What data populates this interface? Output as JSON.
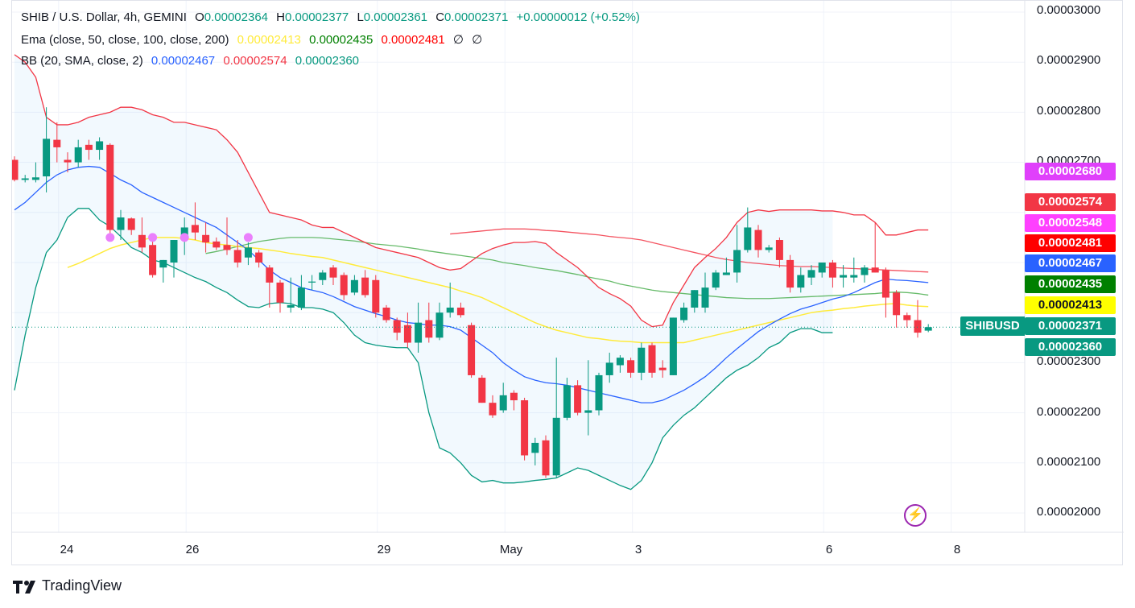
{
  "legend": {
    "title": "SHIB / U.S. Dollar, 4h, GEMINI",
    "o_label": "O",
    "o_value": "0.00002364",
    "h_label": "H",
    "h_value": "0.00002377",
    "l_label": "L",
    "l_value": "0.00002361",
    "c_label": "C",
    "c_value": "0.00002371",
    "change": "+0.00000012 (+0.52%)",
    "ema_label": "Ema (close, 50, close, 100, close, 200)",
    "ema_50": "0.00002413",
    "ema_100": "0.00002435",
    "ema_200": "0.00002481",
    "ema_extra_1": "∅",
    "ema_extra_2": "∅",
    "bb_label": "BB (20, SMA, close, 2)",
    "bb_basis": "0.00002467",
    "bb_upper": "0.00002574",
    "bb_lower": "0.00002360"
  },
  "price_tags": {
    "t2680": "0.00002680",
    "t2574": "0.00002574",
    "t2548": "0.00002548",
    "t2481": "0.00002481",
    "t2467": "0.00002467",
    "t2435": "0.00002435",
    "t2413": "0.00002413",
    "t2371": "0.00002371",
    "t2360": "0.00002360",
    "symbol": "SHIBUSD"
  },
  "brand": "TradingView",
  "colors": {
    "up": "#089981",
    "down": "#f23645",
    "bb_basis": "#2962ff",
    "bb_upper": "#f23645",
    "bb_lower": "#089981",
    "ema50": "#ffeb3b",
    "ema100": "#4caf50",
    "ema200": "#f23645",
    "tag_magenta": "#e040fb",
    "tag_pink": "#ff55dd",
    "tag_ema200": "#ff0000",
    "tag_ema100": "#008000",
    "tag_ema50": "#ffff00",
    "marker": "#ea80fc"
  },
  "chart_data": {
    "type": "candlestick",
    "title": "SHIB / U.S. Dollar, 4h, GEMINI",
    "ylim": [
      1.97e-05,
      3e-05
    ],
    "y_ticks": [
      "0.00003000",
      "0.00002900",
      "0.00002800",
      "0.00002700",
      "0.00002300",
      "0.00002200",
      "0.00002100",
      "0.00002000"
    ],
    "x_ticks": [
      {
        "label": "24",
        "index": 4
      },
      {
        "label": "26",
        "index": 16
      },
      {
        "label": "29",
        "index": 34
      },
      {
        "label": "May",
        "index": 46
      },
      {
        "label": "3",
        "index": 58
      },
      {
        "label": "6",
        "index": 76
      },
      {
        "label": "8",
        "index": 88
      }
    ],
    "candles": [
      [
        2.705e-05,
        2.712e-05,
        2.662e-05,
        2.665e-05
      ],
      [
        2.665e-05,
        2.675e-05,
        2.66e-05,
        2.668e-05
      ],
      [
        2.665e-05,
        2.7e-05,
        2.66e-05,
        2.67e-05
      ],
      [
        2.672e-05,
        2.81e-05,
        2.64e-05,
        2.747e-05
      ],
      [
        2.745e-05,
        2.78e-05,
        2.7e-05,
        2.73e-05
      ],
      [
        2.705e-05,
        2.72e-05,
        2.68e-05,
        2.7e-05
      ],
      [
        2.7e-05,
        2.745e-05,
        2.69e-05,
        2.73e-05
      ],
      [
        2.735e-05,
        2.745e-05,
        2.705e-05,
        2.725e-05
      ],
      [
        2.725e-05,
        2.75e-05,
        2.705e-05,
        2.742e-05
      ],
      [
        2.735e-05,
        2.738e-05,
        2.555e-05,
        2.565e-05
      ],
      [
        2.565e-05,
        2.605e-05,
        2.545e-05,
        2.59e-05
      ],
      [
        2.588e-05,
        2.59e-05,
        2.555e-05,
        2.565e-05
      ],
      [
        2.555e-05,
        2.59e-05,
        2.52e-05,
        2.53e-05
      ],
      [
        2.535e-05,
        2.545e-05,
        2.47e-05,
        2.475e-05
      ],
      [
        2.49e-05,
        2.505e-05,
        2.46e-05,
        2.505e-05
      ],
      [
        2.5e-05,
        2.545e-05,
        2.47e-05,
        2.545e-05
      ],
      [
        2.545e-05,
        2.59e-05,
        2.515e-05,
        2.57e-05
      ],
      [
        2.575e-05,
        2.62e-05,
        2.545e-05,
        2.56e-05
      ],
      [
        2.555e-05,
        2.58e-05,
        2.52e-05,
        2.54e-05
      ],
      [
        2.542e-05,
        2.55e-05,
        2.525e-05,
        2.53e-05
      ],
      [
        2.535e-05,
        2.59e-05,
        2.515e-05,
        2.525e-05
      ],
      [
        2.525e-05,
        2.545e-05,
        2.49e-05,
        2.5e-05
      ],
      [
        2.51e-05,
        2.54e-05,
        2.495e-05,
        2.53e-05
      ],
      [
        2.52e-05,
        2.525e-05,
        2.49e-05,
        2.5e-05
      ],
      [
        2.49e-05,
        2.495e-05,
        2.41e-05,
        2.46e-05
      ],
      [
        2.46e-05,
        2.465e-05,
        2.4e-05,
        2.42e-05
      ],
      [
        2.41e-05,
        2.47e-05,
        2.4e-05,
        2.415e-05
      ],
      [
        2.41e-05,
        2.475e-05,
        2.405e-05,
        2.45e-05
      ],
      [
        2.46e-05,
        2.475e-05,
        2.445e-05,
        2.462e-05
      ],
      [
        2.465e-05,
        2.485e-05,
        2.455e-05,
        2.48e-05
      ],
      [
        2.49e-05,
        2.495e-05,
        2.455e-05,
        2.47e-05
      ],
      [
        2.475e-05,
        2.48e-05,
        2.425e-05,
        2.435e-05
      ],
      [
        2.44e-05,
        2.475e-05,
        2.435e-05,
        2.465e-05
      ],
      [
        2.47e-05,
        2.485e-05,
        2.43e-05,
        2.435e-05
      ],
      [
        2.465e-05,
        2.475e-05,
        2.39e-05,
        2.4e-05
      ],
      [
        2.41e-05,
        2.415e-05,
        2.38e-05,
        2.385e-05
      ],
      [
        2.385e-05,
        2.39e-05,
        2.345e-05,
        2.36e-05
      ],
      [
        2.375e-05,
        2.4e-05,
        2.33e-05,
        2.34e-05
      ],
      [
        2.34e-05,
        2.42e-05,
        2.32e-05,
        2.38e-05
      ],
      [
        2.385e-05,
        2.42e-05,
        2.34e-05,
        2.35e-05
      ],
      [
        2.35e-05,
        2.42e-05,
        2.345e-05,
        2.4e-05
      ],
      [
        2.4e-05,
        2.46e-05,
        2.39e-05,
        2.41e-05
      ],
      [
        2.41e-05,
        2.42e-05,
        2.39e-05,
        2.395e-05
      ],
      [
        2.375e-05,
        2.38e-05,
        2.27e-05,
        2.275e-05
      ],
      [
        2.27e-05,
        2.275e-05,
        2.22e-05,
        2.22e-05
      ],
      [
        2.22e-05,
        2.235e-05,
        2.19e-05,
        2.195e-05
      ],
      [
        2.205e-05,
        2.26e-05,
        2.2e-05,
        2.235e-05
      ],
      [
        2.24e-05,
        2.245e-05,
        2.205e-05,
        2.225e-05
      ],
      [
        2.225e-05,
        2.23e-05,
        2.105e-05,
        2.115e-05
      ],
      [
        2.12e-05,
        2.15e-05,
        2.095e-05,
        2.14e-05
      ],
      [
        2.145e-05,
        2.155e-05,
        2.07e-05,
        2.075e-05
      ],
      [
        2.075e-05,
        2.31e-05,
        2.07e-05,
        2.19e-05
      ],
      [
        2.19e-05,
        2.27e-05,
        2.185e-05,
        2.255e-05
      ],
      [
        2.255e-05,
        2.265e-05,
        2.195e-05,
        2.2e-05
      ],
      [
        2.2e-05,
        2.305e-05,
        2.155e-05,
        2.205e-05
      ],
      [
        2.205e-05,
        2.28e-05,
        2.195e-05,
        2.275e-05
      ],
      [
        2.275e-05,
        2.32e-05,
        2.26e-05,
        2.3e-05
      ],
      [
        2.295e-05,
        2.315e-05,
        2.28e-05,
        2.31e-05
      ],
      [
        2.305e-05,
        2.31e-05,
        2.27e-05,
        2.28e-05
      ],
      [
        2.28e-05,
        2.34e-05,
        2.265e-05,
        2.33e-05
      ],
      [
        2.335e-05,
        2.34e-05,
        2.27e-05,
        2.28e-05
      ],
      [
        2.29e-05,
        2.305e-05,
        2.27e-05,
        2.285e-05
      ],
      [
        2.275e-05,
        2.39e-05,
        2.275e-05,
        2.39e-05
      ],
      [
        2.385e-05,
        2.42e-05,
        2.38e-05,
        2.41e-05
      ],
      [
        2.41e-05,
        2.445e-05,
        2.4e-05,
        2.445e-05
      ],
      [
        2.41e-05,
        2.48e-05,
        2.4e-05,
        2.45e-05
      ],
      [
        2.45e-05,
        2.485e-05,
        2.445e-05,
        2.48e-05
      ],
      [
        2.475e-05,
        2.51e-05,
        2.475e-05,
        2.48e-05
      ],
      [
        2.48e-05,
        2.575e-05,
        2.46e-05,
        2.525e-05
      ],
      [
        2.525e-05,
        2.61e-05,
        2.52e-05,
        2.57e-05
      ],
      [
        2.565e-05,
        2.575e-05,
        2.51e-05,
        2.525e-05
      ],
      [
        2.525e-05,
        2.535e-05,
        2.52e-05,
        2.53e-05
      ],
      [
        2.545e-05,
        2.55e-05,
        2.49e-05,
        2.505e-05
      ],
      [
        2.505e-05,
        2.515e-05,
        2.44e-05,
        2.45e-05
      ],
      [
        2.45e-05,
        2.49e-05,
        2.44e-05,
        2.475e-05
      ],
      [
        2.47e-05,
        2.495e-05,
        2.455e-05,
        2.485e-05
      ],
      [
        2.48e-05,
        2.5e-05,
        2.47e-05,
        2.5e-05
      ],
      [
        2.5e-05,
        2.505e-05,
        2.45e-05,
        2.47e-05
      ],
      [
        2.47e-05,
        2.495e-05,
        2.45e-05,
        2.475e-05
      ],
      [
        2.47e-05,
        2.51e-05,
        2.46e-05,
        2.475e-05
      ],
      [
        2.475e-05,
        2.495e-05,
        2.46e-05,
        2.49e-05
      ],
      [
        2.49e-05,
        2.58e-05,
        2.48e-05,
        2.48e-05
      ],
      [
        2.485e-05,
        2.49e-05,
        2.39e-05,
        2.43e-05
      ],
      [
        2.44e-05,
        2.445e-05,
        2.37e-05,
        2.395e-05
      ],
      [
        2.395e-05,
        2.4e-05,
        2.37e-05,
        2.385e-05
      ],
      [
        2.385e-05,
        2.425e-05,
        2.35e-05,
        2.36e-05
      ],
      [
        2.364e-05,
        2.377e-05,
        2.361e-05,
        2.371e-05
      ]
    ],
    "bb_upper": [
      2.915e-05,
      2.9e-05,
      2.87e-05,
      2.79e-05,
      2.775e-05,
      2.775e-05,
      2.78e-05,
      2.79e-05,
      2.795e-05,
      2.8e-05,
      2.81e-05,
      2.81e-05,
      2.805e-05,
      2.795e-05,
      2.79e-05,
      2.78e-05,
      2.78e-05,
      2.775e-05,
      2.77e-05,
      2.765e-05,
      2.745e-05,
      2.72e-05,
      2.68e-05,
      2.64e-05,
      2.6e-05,
      2.595e-05,
      2.59e-05,
      2.585e-05,
      2.575e-05,
      2.57e-05,
      2.57e-05,
      2.56e-05,
      2.55e-05,
      2.54e-05,
      2.53e-05,
      2.525e-05,
      2.52e-05,
      2.515e-05,
      2.51e-05,
      2.5e-05,
      2.49e-05,
      2.485e-05,
      2.488e-05,
      2.503e-05,
      2.518e-05,
      2.528e-05,
      2.535e-05,
      2.54e-05,
      2.54e-05,
      2.542e-05,
      2.538e-05,
      2.52e-05,
      2.505e-05,
      2.49e-05,
      2.47e-05,
      2.45e-05,
      2.438e-05,
      2.428e-05,
      2.413e-05,
      2.385e-05,
      2.372e-05,
      2.375e-05,
      2.42e-05,
      2.455e-05,
      2.49e-05,
      2.51e-05,
      2.528e-05,
      2.55e-05,
      2.58e-05,
      2.6e-05,
      2.605e-05,
      2.602e-05,
      2.605e-05,
      2.605e-05,
      2.605e-05,
      2.605e-05,
      2.603e-05,
      2.603e-05,
      2.6e-05,
      2.595e-05,
      2.595e-05,
      2.58e-05,
      2.555e-05,
      2.555e-05,
      2.56e-05,
      2.565e-05,
      2.565e-05
    ],
    "bb_basis": [
      2.605e-05,
      2.62e-05,
      2.64e-05,
      2.66e-05,
      2.675e-05,
      2.685e-05,
      2.69e-05,
      2.692e-05,
      2.69e-05,
      2.678e-05,
      2.665e-05,
      2.655e-05,
      2.64e-05,
      2.63e-05,
      2.62e-05,
      2.61e-05,
      2.6e-05,
      2.59e-05,
      2.58e-05,
      2.57e-05,
      2.555e-05,
      2.54e-05,
      2.525e-05,
      2.505e-05,
      2.485e-05,
      2.47e-05,
      2.46e-05,
      2.45e-05,
      2.445e-05,
      2.44e-05,
      2.432e-05,
      2.422e-05,
      2.412e-05,
      2.405e-05,
      2.398e-05,
      2.392e-05,
      2.385e-05,
      2.38e-05,
      2.378e-05,
      2.375e-05,
      2.375e-05,
      2.372e-05,
      2.365e-05,
      2.35e-05,
      2.335e-05,
      2.32e-05,
      2.3e-05,
      2.285e-05,
      2.272e-05,
      2.265e-05,
      2.26e-05,
      2.258e-05,
      2.255e-05,
      2.25e-05,
      2.245e-05,
      2.24e-05,
      2.235e-05,
      2.23e-05,
      2.225e-05,
      2.22e-05,
      2.22e-05,
      2.225e-05,
      2.235e-05,
      2.245e-05,
      2.258e-05,
      2.272e-05,
      2.29e-05,
      2.31e-05,
      2.328e-05,
      2.345e-05,
      2.362e-05,
      2.375e-05,
      2.387e-05,
      2.398e-05,
      2.407e-05,
      2.413e-05,
      2.42e-05,
      2.427e-05,
      2.432e-05,
      2.44e-05,
      2.45e-05,
      2.46e-05,
      2.467e-05,
      2.465e-05,
      2.464e-05,
      2.462e-05,
      2.46e-05
    ],
    "bb_lower": [
      2.245e-05,
      2.355e-05,
      2.45e-05,
      2.52e-05,
      2.545e-05,
      2.59e-05,
      2.608e-05,
      2.608e-05,
      2.585e-05,
      2.572e-05,
      2.552e-05,
      2.53e-05,
      2.52e-05,
      2.505e-05,
      2.5e-05,
      2.49e-05,
      2.48e-05,
      2.47e-05,
      2.462e-05,
      2.45e-05,
      2.44e-05,
      2.425e-05,
      2.412e-05,
      2.41e-05,
      2.418e-05,
      2.42e-05,
      2.418e-05,
      2.41e-05,
      2.41e-05,
      2.407e-05,
      2.4e-05,
      2.38e-05,
      2.355e-05,
      2.34e-05,
      2.335e-05,
      2.332e-05,
      2.33e-05,
      2.33e-05,
      2.3e-05,
      2.2e-05,
      2.13e-05,
      2.12e-05,
      2.1e-05,
      2.075e-05,
      2.062e-05,
      2.065e-05,
      2.06e-05,
      2.06e-05,
      2.062e-05,
      2.065e-05,
      2.067e-05,
      2.07e-05,
      2.08e-05,
      2.09e-05,
      2.085e-05,
      2.075e-05,
      2.065e-05,
      2.055e-05,
      2.047e-05,
      2.065e-05,
      2.1e-05,
      2.15e-05,
      2.175e-05,
      2.195e-05,
      2.21e-05,
      2.23e-05,
      2.25e-05,
      2.27e-05,
      2.285e-05,
      2.295e-05,
      2.31e-05,
      2.33e-05,
      2.34e-05,
      2.36e-05,
      2.368e-05,
      2.368e-05,
      2.36e-05,
      2.36e-05
    ],
    "ema50": [
      2.49e-05,
      2.498e-05,
      2.508e-05,
      2.518e-05,
      2.528e-05,
      2.535e-05,
      2.54e-05,
      2.545e-05,
      2.55e-05,
      2.55e-05,
      2.55e-05,
      2.548e-05,
      2.545e-05,
      2.54e-05,
      2.537e-05,
      2.535e-05,
      2.532e-05,
      2.53e-05,
      2.528e-05,
      2.525e-05,
      2.522e-05,
      2.518e-05,
      2.515e-05,
      2.512e-05,
      2.51e-05,
      2.505e-05,
      2.5e-05,
      2.495e-05,
      2.49e-05,
      2.485e-05,
      2.48e-05,
      2.475e-05,
      2.47e-05,
      2.465e-05,
      2.46e-05,
      2.455e-05,
      2.45e-05,
      2.443e-05,
      2.437e-05,
      2.43e-05,
      2.42e-05,
      2.41e-05,
      2.4e-05,
      2.39e-05,
      2.38e-05,
      2.372e-05,
      2.365e-05,
      2.36e-05,
      2.355e-05,
      2.35e-05,
      2.348e-05,
      2.345e-05,
      2.343e-05,
      2.342e-05,
      2.34e-05,
      2.34e-05,
      2.34e-05,
      2.34e-05,
      2.34e-05,
      2.345e-05,
      2.35e-05,
      2.355e-05,
      2.36e-05,
      2.365e-05,
      2.37e-05,
      2.375e-05,
      2.38e-05,
      2.385e-05,
      2.39e-05,
      2.395e-05,
      2.4e-05,
      2.403e-05,
      2.405e-05,
      2.408e-05,
      2.41e-05,
      2.413e-05,
      2.415e-05,
      2.417e-05,
      2.418e-05,
      2.415e-05,
      2.413e-05,
      2.412e-05
    ],
    "ema100": [
      2.518e-05,
      2.522e-05,
      2.527e-05,
      2.532e-05,
      2.537e-05,
      2.542e-05,
      2.545e-05,
      2.548e-05,
      2.55e-05,
      2.55e-05,
      2.55e-05,
      2.549e-05,
      2.547e-05,
      2.545e-05,
      2.543e-05,
      2.54e-05,
      2.537e-05,
      2.535e-05,
      2.533e-05,
      2.53e-05,
      2.527e-05,
      2.523e-05,
      2.52e-05,
      2.517e-05,
      2.514e-05,
      2.511e-05,
      2.508e-05,
      2.505e-05,
      2.5e-05,
      2.497e-05,
      2.494e-05,
      2.49e-05,
      2.487e-05,
      2.484e-05,
      2.48e-05,
      2.476e-05,
      2.471e-05,
      2.467e-05,
      2.463e-05,
      2.457e-05,
      2.453e-05,
      2.449e-05,
      2.445e-05,
      2.442e-05,
      2.44e-05,
      2.438e-05,
      2.436e-05,
      2.434e-05,
      2.432e-05,
      2.43e-05,
      2.429e-05,
      2.428e-05,
      2.428e-05,
      2.428e-05,
      2.429e-05,
      2.43e-05,
      2.431e-05,
      2.432e-05,
      2.433e-05,
      2.434e-05,
      2.435e-05,
      2.436e-05,
      2.437e-05,
      2.438e-05,
      2.44e-05,
      2.441e-05,
      2.44e-05,
      2.438e-05,
      2.435e-05
    ],
    "ema200": [
      2.557e-05,
      2.559e-05,
      2.561e-05,
      2.563e-05,
      2.565e-05,
      2.567e-05,
      2.567e-05,
      2.567e-05,
      2.566e-05,
      2.564e-05,
      2.563e-05,
      2.561e-05,
      2.559e-05,
      2.557e-05,
      2.555e-05,
      2.552e-05,
      2.55e-05,
      2.548e-05,
      2.545e-05,
      2.54e-05,
      2.535e-05,
      2.53e-05,
      2.525e-05,
      2.52e-05,
      2.515e-05,
      2.51e-05,
      2.506e-05,
      2.503e-05,
      2.5e-05,
      2.498e-05,
      2.496e-05,
      2.494e-05,
      2.493e-05,
      2.492e-05,
      2.492e-05,
      2.491e-05,
      2.49e-05,
      2.489e-05,
      2.488e-05,
      2.487e-05,
      2.486e-05,
      2.485e-05,
      2.484e-05,
      2.483e-05,
      2.482e-05,
      2.481e-05
    ]
  }
}
